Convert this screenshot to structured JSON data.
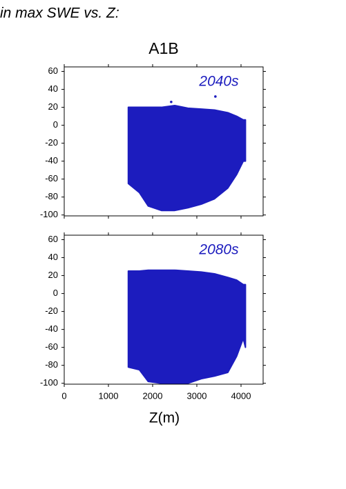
{
  "title": "in max SWE vs. Z:",
  "subtitle": "A1B",
  "chart_data": [
    {
      "type": "band",
      "label": "2040s",
      "color": "#1c1cbe",
      "x": [
        1450,
        1700,
        1900,
        2200,
        2500,
        2800,
        3100,
        3400,
        3700,
        3900,
        4050,
        4100
      ],
      "high": [
        20,
        20,
        20,
        20,
        22,
        19,
        18,
        17,
        14,
        10,
        6,
        6
      ],
      "low": [
        -65,
        -75,
        -90,
        -95,
        -95,
        -92,
        -88,
        -82,
        -70,
        -55,
        -40,
        -40
      ],
      "points": {
        "x": [
          3420,
          2420
        ],
        "y": [
          32,
          26
        ]
      },
      "xlim": [
        0,
        4500
      ],
      "ylim": [
        -101,
        65
      ],
      "xticks": [
        0,
        1000,
        2000,
        3000,
        4000
      ],
      "yticks": [
        -100,
        -80,
        -60,
        -40,
        -20,
        0,
        20,
        40,
        60
      ]
    },
    {
      "type": "band",
      "label": "2080s",
      "color": "#1c1cbe",
      "x": [
        1450,
        1700,
        1900,
        2200,
        2500,
        2800,
        3100,
        3400,
        3700,
        3900,
        4050,
        4100
      ],
      "high": [
        25,
        25,
        26,
        26,
        26,
        25,
        24,
        22,
        18,
        15,
        10,
        10
      ],
      "low": [
        -82,
        -85,
        -98,
        -100,
        -100,
        -100,
        -95,
        -92,
        -88,
        -70,
        -50,
        -60
      ],
      "points": {
        "x": [
          3620
        ],
        "y": [
          15
        ]
      },
      "xlim": [
        0,
        4500
      ],
      "ylim": [
        -101,
        65
      ],
      "xticks": [
        0,
        1000,
        2000,
        3000,
        4000
      ],
      "yticks": [
        -100,
        -80,
        -60,
        -40,
        -20,
        0,
        20,
        40,
        60
      ],
      "xlabel": "Z(m)"
    }
  ]
}
